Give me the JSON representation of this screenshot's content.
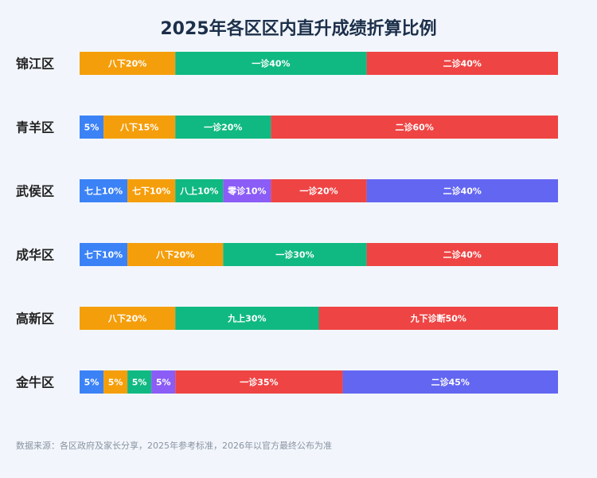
{
  "chart_data": {
    "type": "bar",
    "orientation": "horizontal-stacked",
    "title": "2025年各区区内直升成绩折算比例",
    "xlim": [
      0,
      100
    ],
    "grid": false,
    "legend": "none",
    "categories": [
      "锦江区",
      "青羊区",
      "武侯区",
      "成华区",
      "高新区",
      "金牛区"
    ],
    "rows": [
      {
        "category": "锦江区",
        "segments": [
          {
            "label": "八下20%",
            "value": 20,
            "color": "#f59e0b"
          },
          {
            "label": "一诊40%",
            "value": 40,
            "color": "#10b981"
          },
          {
            "label": "二诊40%",
            "value": 40,
            "color": "#ef4444"
          }
        ]
      },
      {
        "category": "青羊区",
        "segments": [
          {
            "label": "5%",
            "value": 5,
            "color": "#3b82f6"
          },
          {
            "label": "八下15%",
            "value": 15,
            "color": "#f59e0b"
          },
          {
            "label": "一诊20%",
            "value": 20,
            "color": "#10b981"
          },
          {
            "label": "二诊60%",
            "value": 60,
            "color": "#ef4444"
          }
        ]
      },
      {
        "category": "武侯区",
        "segments": [
          {
            "label": "七上10%",
            "value": 10,
            "color": "#3b82f6"
          },
          {
            "label": "七下10%",
            "value": 10,
            "color": "#f59e0b"
          },
          {
            "label": "八上10%",
            "value": 10,
            "color": "#10b981"
          },
          {
            "label": "零诊10%",
            "value": 10,
            "color": "#8b5cf6"
          },
          {
            "label": "一诊20%",
            "value": 20,
            "color": "#ef4444"
          },
          {
            "label": "二诊40%",
            "value": 40,
            "color": "#6366f1"
          }
        ]
      },
      {
        "category": "成华区",
        "segments": [
          {
            "label": "七下10%",
            "value": 10,
            "color": "#3b82f6"
          },
          {
            "label": "八下20%",
            "value": 20,
            "color": "#f59e0b"
          },
          {
            "label": "一诊30%",
            "value": 30,
            "color": "#10b981"
          },
          {
            "label": "二诊40%",
            "value": 40,
            "color": "#ef4444"
          }
        ]
      },
      {
        "category": "高新区",
        "segments": [
          {
            "label": "八下20%",
            "value": 20,
            "color": "#f59e0b"
          },
          {
            "label": "九上30%",
            "value": 30,
            "color": "#10b981"
          },
          {
            "label": "九下诊断50%",
            "value": 50,
            "color": "#ef4444"
          }
        ]
      },
      {
        "category": "金牛区",
        "segments": [
          {
            "label": "5%",
            "value": 5,
            "color": "#3b82f6"
          },
          {
            "label": "5%",
            "value": 5,
            "color": "#f59e0b"
          },
          {
            "label": "5%",
            "value": 5,
            "color": "#10b981"
          },
          {
            "label": "5%",
            "value": 5,
            "color": "#8b5cf6"
          },
          {
            "label": "一诊35%",
            "value": 35,
            "color": "#ef4444"
          },
          {
            "label": "二诊45%",
            "value": 45,
            "color": "#6366f1"
          }
        ]
      }
    ]
  },
  "footer": {
    "source": "数据来源：各区政府及家长分享，2025年参考标准，2026年以官方最终公布为准"
  }
}
